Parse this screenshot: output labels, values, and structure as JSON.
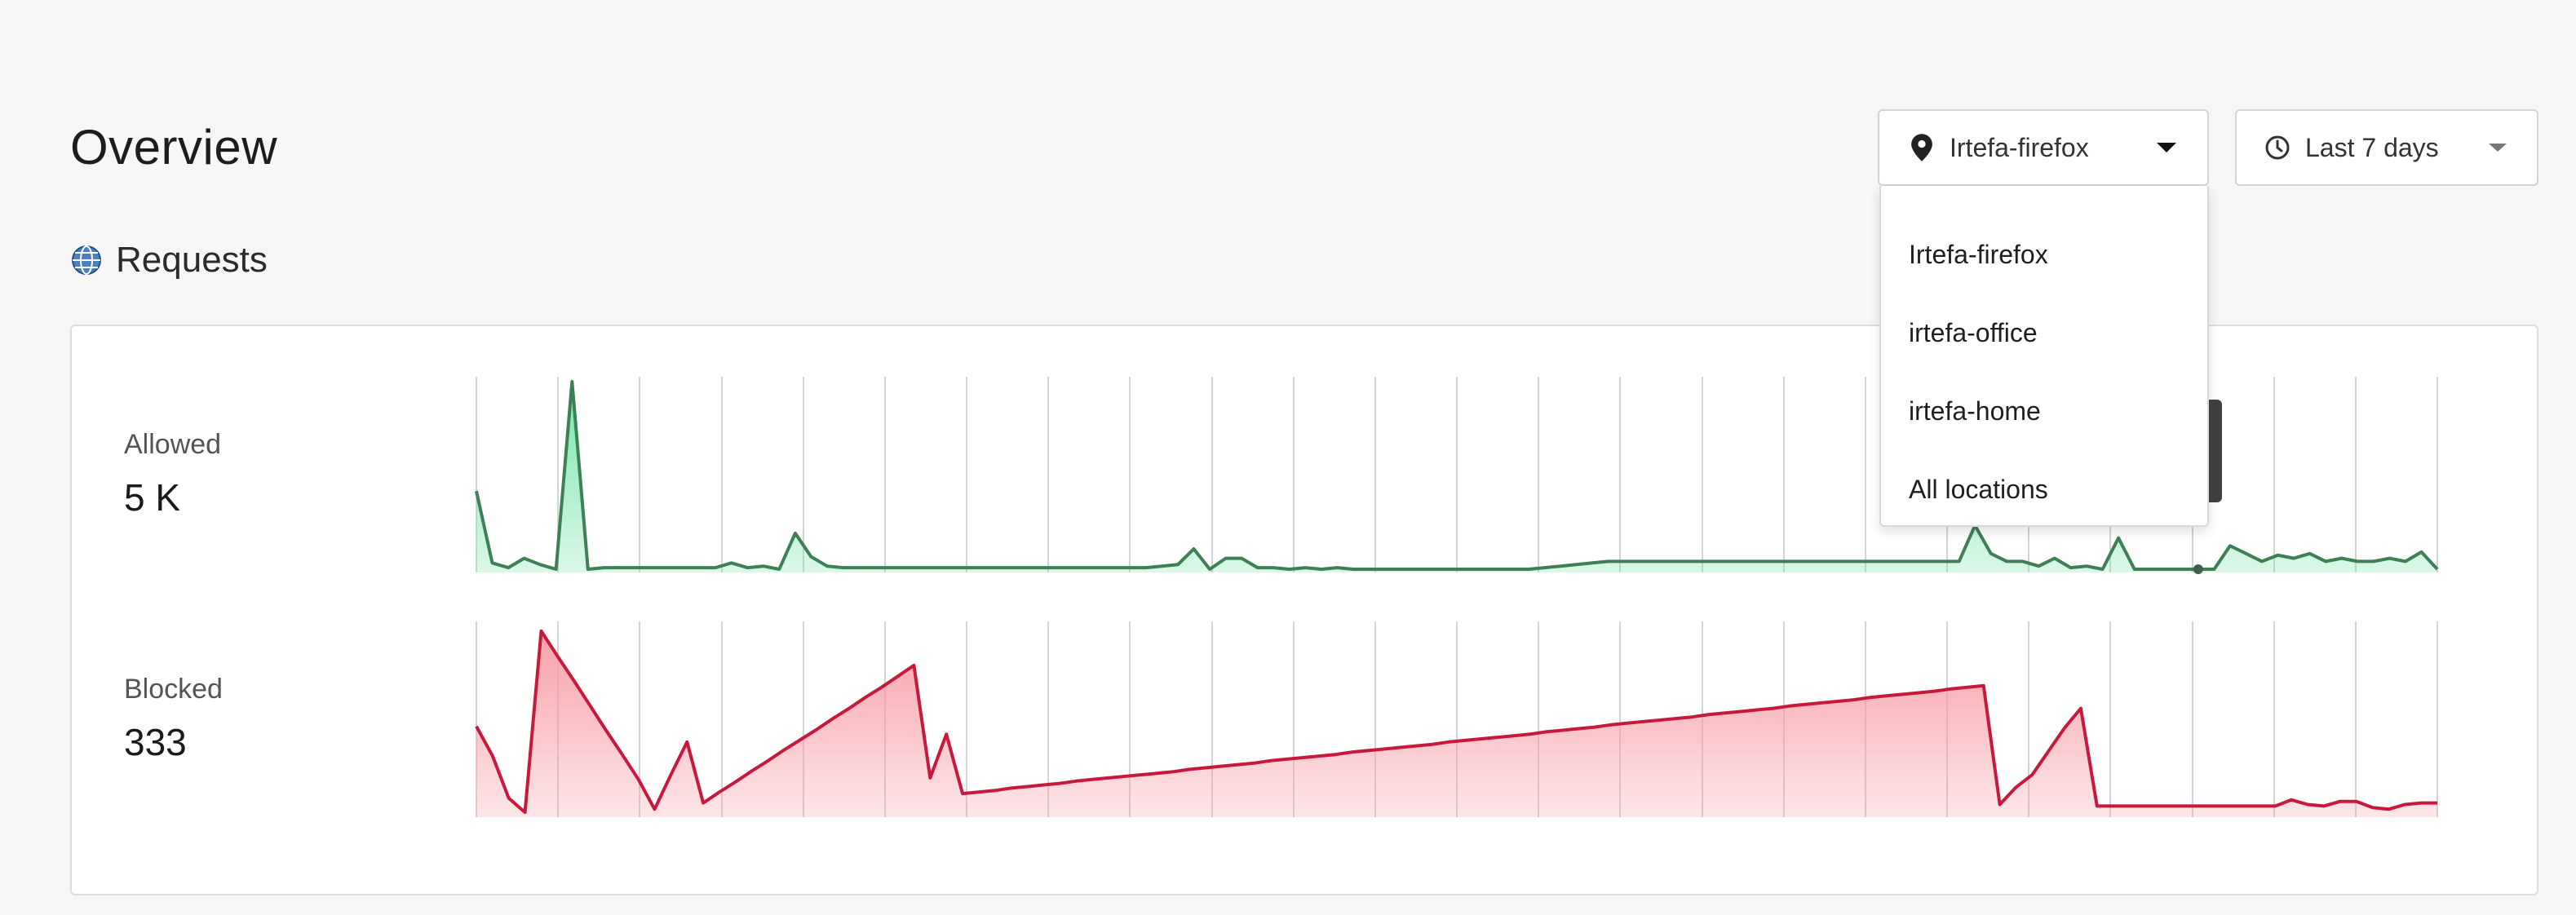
{
  "header": {
    "title": "Overview"
  },
  "section": {
    "title": "Requests",
    "icon": "globe-icon"
  },
  "location_select": {
    "value": "Irtefa-firefox",
    "icon": "location-pin-icon",
    "options": [
      "Irtefa-firefox",
      "irtefa-office",
      "irtefa-home",
      "All locations"
    ]
  },
  "range_select": {
    "value": "Last 7 days",
    "icon": "clock-icon"
  },
  "metrics": {
    "allowed": {
      "label": "Allowed",
      "value": "5 K",
      "color": "#3f7f56",
      "fill": "#6fe3a5"
    },
    "blocked": {
      "label": "Blocked",
      "value": "333",
      "color": "#c8193d",
      "fill": "#f79ba4"
    }
  },
  "chart_data": [
    {
      "type": "area",
      "series": [
        {
          "name": "Allowed",
          "values": [
            100,
            8,
            2,
            14,
            6,
            0,
            240,
            0,
            2,
            2,
            2,
            2,
            2,
            2,
            2,
            2,
            8,
            2,
            4,
            0,
            46,
            16,
            4,
            2,
            2,
            2,
            2,
            2,
            2,
            2,
            2,
            2,
            2,
            2,
            2,
            2,
            2,
            2,
            2,
            2,
            2,
            2,
            2,
            4,
            6,
            26,
            0,
            14,
            14,
            2,
            2,
            0,
            2,
            0,
            2,
            0,
            0,
            0,
            0,
            0,
            0,
            0,
            0,
            0,
            0,
            0,
            0,
            2,
            4,
            6,
            8,
            10,
            10,
            10,
            10,
            10,
            10,
            10,
            10,
            10,
            10,
            10,
            10,
            10,
            10,
            10,
            10,
            10,
            10,
            10,
            10,
            10,
            10,
            10,
            56,
            20,
            10,
            10,
            4,
            14,
            2,
            4,
            0,
            40,
            0,
            0,
            0,
            0,
            0,
            0,
            30,
            20,
            10,
            18,
            14,
            20,
            10,
            14,
            10,
            10,
            14,
            10,
            22,
            0
          ]
        }
      ],
      "ylim": [
        0,
        240
      ]
    },
    {
      "type": "area",
      "series": [
        {
          "name": "Blocked",
          "values": [
            112,
            74,
            20,
            2,
            234,
            202,
            171,
            139,
            107,
            76,
            44,
            6,
            50,
            92,
            14,
            28,
            41,
            55,
            68,
            82,
            95,
            108,
            122,
            135,
            149,
            162,
            176,
            190,
            46,
            102,
            26,
            28,
            30,
            33,
            35,
            37,
            39,
            42,
            44,
            46,
            48,
            50,
            52,
            54,
            57,
            59,
            61,
            63,
            65,
            68,
            70,
            72,
            74,
            76,
            79,
            81,
            83,
            85,
            87,
            89,
            92,
            94,
            96,
            98,
            100,
            102,
            105,
            107,
            109,
            111,
            114,
            116,
            118,
            120,
            122,
            124,
            127,
            129,
            131,
            133,
            135,
            138,
            140,
            142,
            144,
            146,
            149,
            151,
            153,
            155,
            157,
            160,
            162,
            164,
            12,
            34,
            50,
            80,
            110,
            135,
            10,
            10,
            10,
            10,
            10,
            10,
            10,
            10,
            10,
            10,
            10,
            10,
            18,
            12,
            10,
            16,
            16,
            8,
            6,
            12,
            14,
            14
          ]
        }
      ],
      "ylim": [
        0,
        240
      ]
    }
  ]
}
